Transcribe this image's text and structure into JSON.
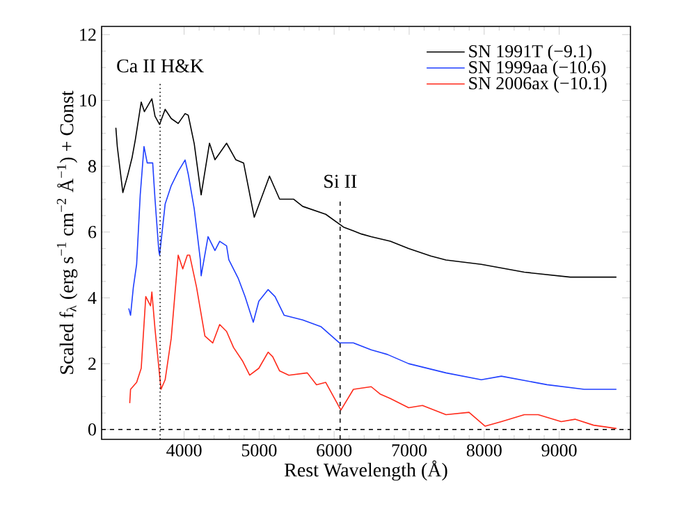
{
  "chart_data": {
    "type": "line",
    "xlabel": "Rest Wavelength (Å)",
    "ylabel": "Scaled f$_{λ}$ (erg s$^{−1}$ cm$^{−2}$ Å$^{−1}$) + Const",
    "xlim": [
      2900,
      9950
    ],
    "ylim": [
      -0.3,
      12.25
    ],
    "xticks": [
      4000,
      5000,
      6000,
      7000,
      8000,
      9000
    ],
    "yticks": [
      0,
      2,
      4,
      6,
      8,
      10,
      12
    ],
    "legend": "top right",
    "grid": false,
    "marker": "none",
    "line_style": "solid",
    "ref_lines": [
      {
        "axis": "x",
        "value": 3680,
        "line_style": "dotted",
        "label": "Ca II H&K"
      },
      {
        "axis": "x",
        "value": 6080,
        "line_style": "dashed",
        "label": "Si II"
      },
      {
        "axis": "y",
        "value": 0,
        "line_style": "dashed"
      }
    ],
    "series": [
      {
        "name": "SN 1991T (−9.1)",
        "color": "#000000",
        "x": [
          3090,
          3109,
          3183,
          3245,
          3305,
          3349,
          3428,
          3470,
          3570,
          3612,
          3673,
          3747,
          3828,
          3921,
          4013,
          4055,
          4135,
          4227,
          4338,
          4411,
          4474,
          4566,
          4688,
          4793,
          4935,
          5138,
          5273,
          5458,
          5581,
          5888,
          6125,
          6365,
          6494,
          6749,
          6993,
          7288,
          7491,
          7962,
          8535,
          9148,
          9763
        ],
        "values": [
          9.17,
          8.6,
          7.2,
          7.7,
          8.25,
          8.8,
          9.95,
          9.66,
          10.05,
          9.52,
          9.27,
          9.73,
          9.45,
          9.3,
          9.6,
          9.55,
          8.68,
          7.13,
          8.7,
          8.2,
          8.4,
          8.7,
          8.2,
          8.1,
          6.45,
          7.7,
          7.0,
          7.0,
          6.78,
          6.54,
          6.15,
          5.94,
          5.86,
          5.72,
          5.5,
          5.27,
          5.15,
          5.02,
          4.78,
          4.63,
          4.63
        ]
      },
      {
        "name": "SN 1999aa (−10.6)",
        "color": "#1f3fff",
        "x": [
          3262,
          3286,
          3323,
          3367,
          3415,
          3465,
          3508,
          3581,
          3612,
          3662,
          3673,
          3747,
          3828,
          3921,
          4013,
          4055,
          4135,
          4216,
          4227,
          4319,
          4411,
          4474,
          4566,
          4596,
          4720,
          4812,
          4922,
          4996,
          5120,
          5212,
          5334,
          5581,
          5827,
          6072,
          6257,
          6494,
          6710,
          6993,
          7491,
          7962,
          8229,
          8838,
          9332,
          9763
        ],
        "values": [
          3.68,
          3.47,
          4.32,
          5.02,
          7.13,
          8.6,
          8.1,
          8.1,
          7.0,
          5.44,
          5.3,
          6.85,
          7.41,
          7.84,
          8.19,
          7.76,
          6.7,
          5.16,
          4.67,
          5.86,
          5.44,
          5.72,
          5.58,
          5.16,
          4.6,
          4.04,
          3.26,
          3.9,
          4.25,
          4.04,
          3.47,
          3.33,
          3.12,
          2.63,
          2.63,
          2.42,
          2.28,
          2.0,
          1.72,
          1.51,
          1.62,
          1.36,
          1.22,
          1.22
        ]
      },
      {
        "name": "SN 2006ax (−10.1)",
        "color": "#ff2a1a",
        "x": [
          3275,
          3286,
          3367,
          3428,
          3489,
          3552,
          3570,
          3612,
          3692,
          3747,
          3828,
          3921,
          3982,
          4043,
          4074,
          4166,
          4277,
          4382,
          4474,
          4566,
          4659,
          4782,
          4874,
          4996,
          5120,
          5181,
          5273,
          5396,
          5642,
          5765,
          5888,
          6090,
          6257,
          6494,
          6611,
          6749,
          6993,
          7177,
          7491,
          7798,
          8013,
          8229,
          8535,
          8720,
          9027,
          9211,
          9458,
          9763
        ],
        "values": [
          0.8,
          1.22,
          1.43,
          1.86,
          4.04,
          3.76,
          4.18,
          3.05,
          1.22,
          1.51,
          2.77,
          5.3,
          4.88,
          5.3,
          5.3,
          4.32,
          2.84,
          2.63,
          3.19,
          2.98,
          2.49,
          2.07,
          1.65,
          1.86,
          2.35,
          2.21,
          1.78,
          1.65,
          1.72,
          1.36,
          1.43,
          0.59,
          1.22,
          1.3,
          1.08,
          0.94,
          0.66,
          0.73,
          0.45,
          0.52,
          0.1,
          0.24,
          0.45,
          0.45,
          0.24,
          0.31,
          0.13,
          0.03
        ]
      }
    ]
  }
}
